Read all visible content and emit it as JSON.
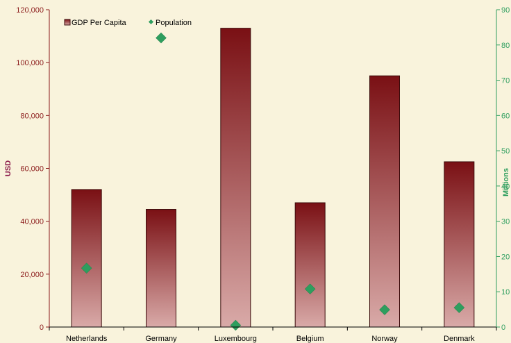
{
  "chart_data": {
    "type": "bar",
    "title": "",
    "categories": [
      "Netherlands",
      "Germany",
      "Luxembourg",
      "Belgium",
      "Norway",
      "Denmark"
    ],
    "series": [
      {
        "name": "GDP Per Capita",
        "chart_type": "bar",
        "axis": "left",
        "values": [
          52000,
          44500,
          113000,
          47000,
          95000,
          62500
        ],
        "color_top": "#7a1014",
        "color_bottom": "#d9aaa8"
      },
      {
        "name": "Population",
        "chart_type": "scatter",
        "marker": "diamond",
        "axis": "right",
        "values": [
          16.7,
          82,
          0.5,
          10.8,
          4.9,
          5.5
        ],
        "color": "#2e9e5e"
      }
    ],
    "ylabel": "USD",
    "y2label": "Millions",
    "ylim": [
      0,
      120000
    ],
    "y2lim": [
      0,
      90
    ],
    "yticks": [
      "0",
      "20,000",
      "40,000",
      "60,000",
      "80,000",
      "100,000",
      "120,000"
    ],
    "y2ticks": [
      "0",
      "10",
      "20",
      "30",
      "40",
      "50",
      "60",
      "70",
      "80",
      "90"
    ],
    "legend_position": "top-left",
    "grid": false,
    "colors": {
      "background": "#f9f3dc",
      "left_axis": "#8b1a1a",
      "right_axis": "#2e9e5e",
      "ylabel": "#8b1a4a"
    }
  }
}
